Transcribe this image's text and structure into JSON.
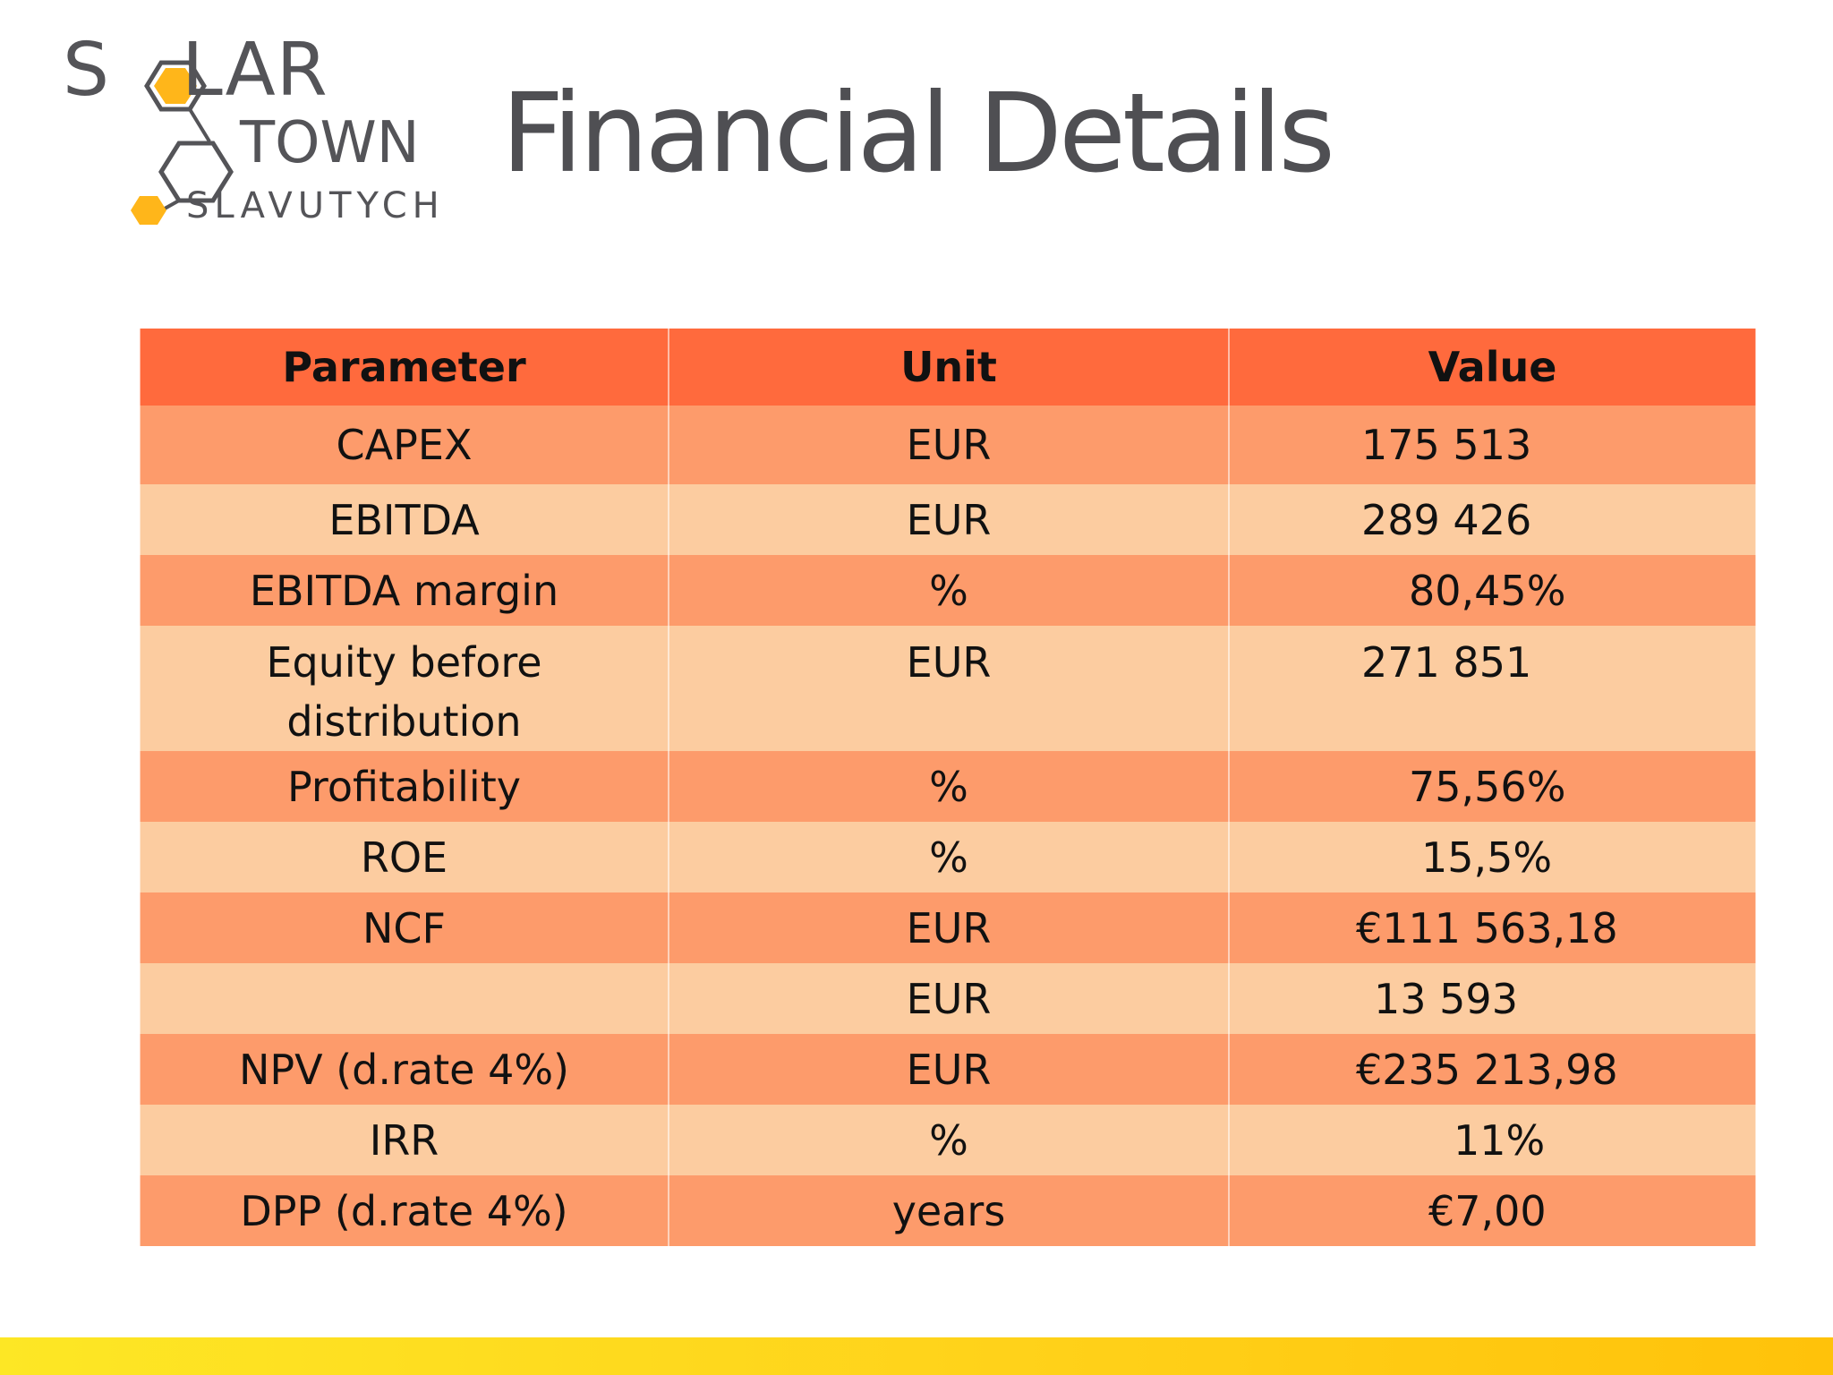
{
  "logo": {
    "word1": "S",
    "word1_rest": "LAR",
    "word2": "TOWN",
    "word3": "SLAVUTYCH",
    "hex_accent": "#ffb61a",
    "hex_outline": "#545458"
  },
  "title": "Financial Details",
  "table": {
    "headers": [
      "Parameter",
      "Unit",
      "Value"
    ],
    "rows": [
      {
        "parameter": "CAPEX",
        "unit": "EUR",
        "value": "175 513"
      },
      {
        "parameter": "EBITDA",
        "unit": "EUR",
        "value": "289 426"
      },
      {
        "parameter": "EBITDA margin",
        "unit": "%",
        "value": "80,45%"
      },
      {
        "parameter": "Equity before distribution",
        "unit": "EUR",
        "value": "271 851"
      },
      {
        "parameter": "Profitability",
        "unit": "%",
        "value": "75,56%"
      },
      {
        "parameter": "ROE",
        "unit": "%",
        "value": "15,5%"
      },
      {
        "parameter": "NCF",
        "unit": "EUR",
        "value": "€111 563,18"
      },
      {
        "parameter": "",
        "unit": "EUR",
        "value": "13 593"
      },
      {
        "parameter": "NPV (d.rate 4%)",
        "unit": "EUR",
        "value": "€235 213,98"
      },
      {
        "parameter": "IRR",
        "unit": "%",
        "value": "11%"
      },
      {
        "parameter": "DPP (d.rate 4%)",
        "unit": "years",
        "value": "€7,00"
      }
    ]
  },
  "colors": {
    "header_bg": "#ff6a3d",
    "row_dark": "#fd9b6b",
    "row_light": "#fcccA0",
    "stripe": "#fde725"
  }
}
